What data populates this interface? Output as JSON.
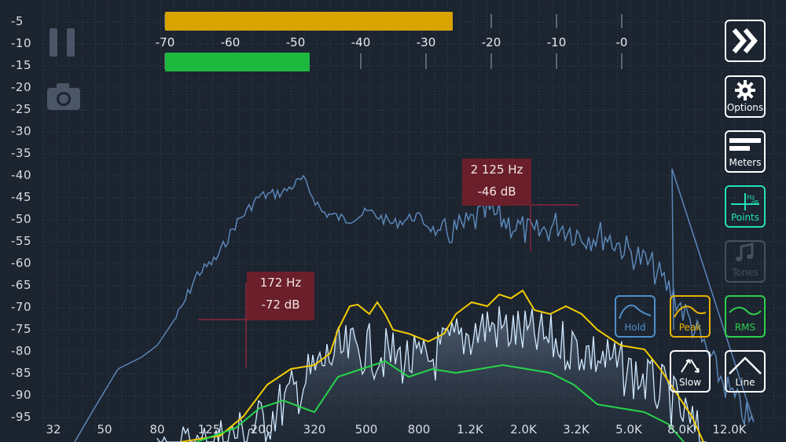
{
  "y_axis_labels": [
    "-5",
    "-10",
    "-15",
    "-20",
    "-25",
    "-30",
    "-35",
    "-40",
    "-45",
    "-50",
    "-55",
    "-60",
    "-65",
    "-70",
    "-75",
    "-80",
    "-85",
    "-90",
    "-95"
  ],
  "x_axis_labels": [
    "32",
    "50",
    "80",
    "125",
    "200",
    "320",
    "500",
    "800",
    "1.2K",
    "2.0K",
    "3.2K",
    "5.0K",
    "8.0K",
    "12.0K"
  ],
  "meter": {
    "labels": [
      "-70",
      "-60",
      "-50",
      "-40",
      "-30",
      "-20",
      "-10",
      "-0"
    ],
    "level_top_db": -26,
    "level_bottom_db": -48,
    "top_color": "#d9a300",
    "bottom_color": "#1fb83f"
  },
  "markers": [
    {
      "freq": "172 Hz",
      "db": "-72 dB"
    },
    {
      "freq": "2 125 Hz",
      "db": "-46 dB"
    }
  ],
  "buttons": {
    "forward": {
      "icon": "double-chevron-icon"
    },
    "options": {
      "label": "Options",
      "icon": "gear-icon"
    },
    "meters": {
      "label": "Meters",
      "icon": "bars-icon"
    },
    "points": {
      "label": "Points",
      "icon": "hz-db-icon",
      "color": "#22e0b8"
    },
    "tones": {
      "label": "Tones",
      "icon": "music-note-icon"
    },
    "hold": {
      "label": "Hold",
      "color": "#4f8fc8"
    },
    "peak": {
      "label": "Peak",
      "color": "#e8b200"
    },
    "rms": {
      "label": "RMS",
      "color": "#2ed04a"
    },
    "slow": {
      "label": "Slow"
    },
    "line": {
      "label": "Line"
    }
  },
  "colors": {
    "hold": "#5b87b8",
    "peak": "#f2cc00",
    "rms": "#27d44a",
    "live": "#cfe8ff",
    "grid": "#3a4656"
  }
}
